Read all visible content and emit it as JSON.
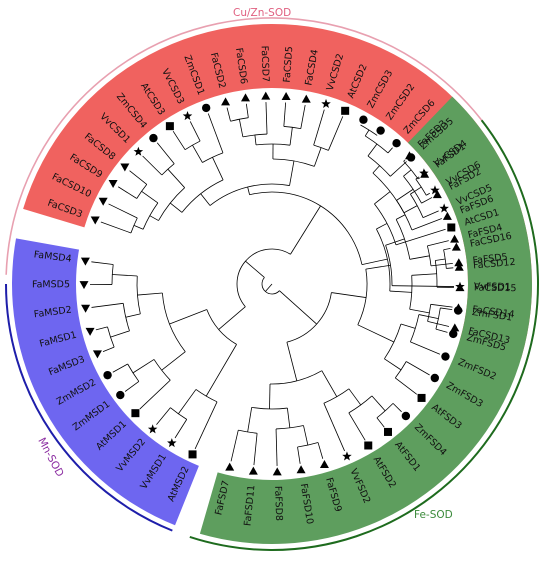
{
  "groups": [
    {
      "id": "cu",
      "label": "Cu/Zn-SOD",
      "color": "#f0625f",
      "outer": "#e8a0b0",
      "label_color": "#e06080"
    },
    {
      "id": "fe",
      "label": "Fe-SOD",
      "color": "#5e9e5e",
      "outer": "#1e6b1e",
      "label_color": "#3a8a3a"
    },
    {
      "id": "mn",
      "label": "Mn-SOD",
      "color": "#6e66f0",
      "outer": "#1e1eaa",
      "label_color": "#8a2aa0"
    }
  ],
  "leaves": [
    {
      "name": "FaCSD13",
      "group": "cu",
      "marker": "triangle-up"
    },
    {
      "name": "FaCSD14",
      "group": "cu",
      "marker": "triangle-up"
    },
    {
      "name": "FaCSD15",
      "group": "cu",
      "marker": "triangle-up"
    },
    {
      "name": "FaCSD12",
      "group": "cu",
      "marker": "triangle-up"
    },
    {
      "name": "FaCSD16",
      "group": "cu",
      "marker": "triangle-up"
    },
    {
      "name": "AtCSD1",
      "group": "cu",
      "marker": "square"
    },
    {
      "name": "VvCSD5",
      "group": "cu",
      "marker": "star"
    },
    {
      "name": "VvCSD6",
      "group": "cu",
      "marker": "star"
    },
    {
      "name": "VvCSD4",
      "group": "cu",
      "marker": "star"
    },
    {
      "name": "ZmCSD5",
      "group": "cu",
      "marker": "circle"
    },
    {
      "name": "ZmCSD6",
      "group": "cu",
      "marker": "circle"
    },
    {
      "name": "ZmCSD2",
      "group": "cu",
      "marker": "circle"
    },
    {
      "name": "ZmCSD3",
      "group": "cu",
      "marker": "circle"
    },
    {
      "name": "AtCSD2",
      "group": "cu",
      "marker": "square"
    },
    {
      "name": "VvCSD2",
      "group": "cu",
      "marker": "star"
    },
    {
      "name": "FaCSD4",
      "group": "cu",
      "marker": "triangle-up"
    },
    {
      "name": "FaCSD5",
      "group": "cu",
      "marker": "triangle-up"
    },
    {
      "name": "FaCSD7",
      "group": "cu",
      "marker": "triangle-up"
    },
    {
      "name": "FaCSD6",
      "group": "cu",
      "marker": "triangle-up"
    },
    {
      "name": "FaCSD2",
      "group": "cu",
      "marker": "triangle-up"
    },
    {
      "name": "ZmCSD1",
      "group": "cu",
      "marker": "circle"
    },
    {
      "name": "VvCSD3",
      "group": "cu",
      "marker": "star"
    },
    {
      "name": "AtCSD3",
      "group": "cu",
      "marker": "square"
    },
    {
      "name": "ZmCSD4",
      "group": "cu",
      "marker": "circle"
    },
    {
      "name": "VvCSD1",
      "group": "cu",
      "marker": "star"
    },
    {
      "name": "FaCSD8",
      "group": "cu",
      "marker": "triangle-down"
    },
    {
      "name": "FaCSD9",
      "group": "cu",
      "marker": "triangle-down"
    },
    {
      "name": "FaCSD10",
      "group": "cu",
      "marker": "triangle-down"
    },
    {
      "name": "FaCSD3",
      "group": "cu",
      "marker": "triangle-down"
    },
    {
      "name": "FaMSD4",
      "group": "mn",
      "marker": "triangle-down"
    },
    {
      "name": "FaMSD5",
      "group": "mn",
      "marker": "triangle-down"
    },
    {
      "name": "FaMSD2",
      "group": "mn",
      "marker": "triangle-down"
    },
    {
      "name": "FaMSD1",
      "group": "mn",
      "marker": "triangle-down"
    },
    {
      "name": "FaMSD3",
      "group": "mn",
      "marker": "triangle-down"
    },
    {
      "name": "ZmMSD2",
      "group": "mn",
      "marker": "circle"
    },
    {
      "name": "ZmMSD1",
      "group": "mn",
      "marker": "circle"
    },
    {
      "name": "AtMSD1",
      "group": "mn",
      "marker": "square"
    },
    {
      "name": "VvMSD2",
      "group": "mn",
      "marker": "star"
    },
    {
      "name": "VvMSD1",
      "group": "mn",
      "marker": "star"
    },
    {
      "name": "AtMSD2",
      "group": "mn",
      "marker": "square"
    },
    {
      "name": "FaFSD7",
      "group": "fe",
      "marker": "triangle-up"
    },
    {
      "name": "FaFSD11",
      "group": "fe",
      "marker": "triangle-up"
    },
    {
      "name": "FaFSD8",
      "group": "fe",
      "marker": "triangle-up"
    },
    {
      "name": "FaFSD10",
      "group": "fe",
      "marker": "triangle-up"
    },
    {
      "name": "FaFSD9",
      "group": "fe",
      "marker": "triangle-up"
    },
    {
      "name": "VvFSD2",
      "group": "fe",
      "marker": "star"
    },
    {
      "name": "AtFSD2",
      "group": "fe",
      "marker": "square"
    },
    {
      "name": "AtFSD1",
      "group": "fe",
      "marker": "square"
    },
    {
      "name": "ZmFSD4",
      "group": "fe",
      "marker": "circle"
    },
    {
      "name": "AtFSD3",
      "group": "fe",
      "marker": "square"
    },
    {
      "name": "ZmFSD3",
      "group": "fe",
      "marker": "circle"
    },
    {
      "name": "ZmFSD2",
      "group": "fe",
      "marker": "circle"
    },
    {
      "name": "ZmFSD5",
      "group": "fe",
      "marker": "circle"
    },
    {
      "name": "ZmFSD1",
      "group": "fe",
      "marker": "circle"
    },
    {
      "name": "VvFSD1",
      "group": "fe",
      "marker": "star"
    },
    {
      "name": "FaFSD5",
      "group": "fe",
      "marker": "triangle-up"
    },
    {
      "name": "FaFSD4",
      "group": "fe",
      "marker": "triangle-up"
    },
    {
      "name": "FaFSD6",
      "group": "fe",
      "marker": "triangle-up"
    },
    {
      "name": "FaFSD2",
      "group": "fe",
      "marker": "triangle-up"
    },
    {
      "name": "FaFSD1",
      "group": "fe",
      "marker": "triangle-up"
    },
    {
      "name": "FaFSD3",
      "group": "fe",
      "marker": "triangle-up"
    }
  ]
}
